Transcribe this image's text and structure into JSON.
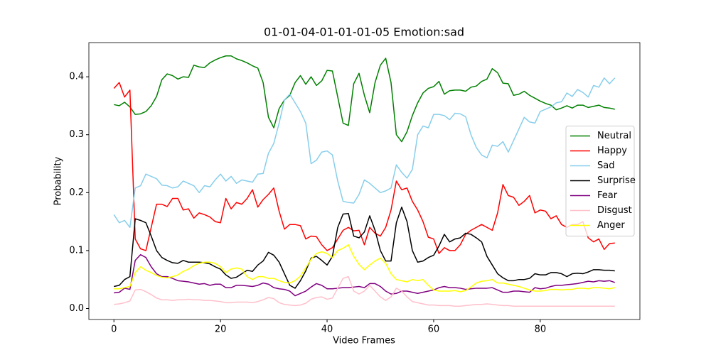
{
  "chart_data": {
    "type": "line",
    "title": "01-01-04-01-01-01-05 Emotion:sad",
    "x_label": "Video Frames",
    "y_label": "Probability",
    "x": [
      0,
      1,
      2,
      3,
      4,
      5,
      6,
      7,
      8,
      9,
      10,
      11,
      12,
      13,
      14,
      15,
      16,
      17,
      18,
      19,
      20,
      21,
      22,
      23,
      24,
      25,
      26,
      27,
      28,
      29,
      30,
      31,
      32,
      33,
      34,
      35,
      36,
      37,
      38,
      39,
      40,
      41,
      42,
      43,
      44,
      45,
      46,
      47,
      48,
      49,
      50,
      51,
      52,
      53,
      54,
      55,
      56,
      57,
      58,
      59,
      60,
      61,
      62,
      63,
      64,
      65,
      66,
      67,
      68,
      69,
      70,
      71,
      72,
      73,
      74,
      75,
      76,
      77,
      78,
      79,
      80,
      81,
      82,
      83,
      84,
      85,
      86,
      87,
      88,
      89,
      90,
      91,
      92,
      93,
      94
    ],
    "xlim": [
      -4.7,
      98.7
    ],
    "ylim": [
      -0.019,
      0.459
    ],
    "xticks": [
      0,
      20,
      40,
      60,
      80
    ],
    "yticks": [
      {
        "value": 0,
        "label": "0.0"
      },
      0.1,
      0.2,
      0.3,
      0.4
    ],
    "legend_position": "center right",
    "series": [
      {
        "name": "Neutral",
        "color": "green",
        "values": [
          0.352,
          0.35,
          0.356,
          0.348,
          0.335,
          0.336,
          0.34,
          0.35,
          0.366,
          0.395,
          0.405,
          0.402,
          0.396,
          0.4,
          0.399,
          0.42,
          0.417,
          0.416,
          0.424,
          0.429,
          0.433,
          0.436,
          0.436,
          0.431,
          0.428,
          0.424,
          0.419,
          0.415,
          0.39,
          0.33,
          0.312,
          0.345,
          0.36,
          0.368,
          0.39,
          0.402,
          0.387,
          0.4,
          0.385,
          0.393,
          0.411,
          0.41,
          0.365,
          0.32,
          0.316,
          0.388,
          0.406,
          0.368,
          0.338,
          0.39,
          0.42,
          0.432,
          0.39,
          0.3,
          0.288,
          0.305,
          0.333,
          0.355,
          0.372,
          0.38,
          0.383,
          0.392,
          0.37,
          0.376,
          0.377,
          0.377,
          0.375,
          0.382,
          0.384,
          0.392,
          0.396,
          0.414,
          0.407,
          0.389,
          0.388,
          0.368,
          0.37,
          0.375,
          0.368,
          0.363,
          0.358,
          0.354,
          0.351,
          0.343,
          0.346,
          0.35,
          0.346,
          0.351,
          0.351,
          0.347,
          0.349,
          0.351,
          0.347,
          0.346,
          0.344
        ]
      },
      {
        "name": "Happy",
        "color": "red",
        "values": [
          0.38,
          0.39,
          0.365,
          0.377,
          0.12,
          0.103,
          0.1,
          0.14,
          0.18,
          0.18,
          0.176,
          0.19,
          0.19,
          0.17,
          0.172,
          0.156,
          0.165,
          0.162,
          0.158,
          0.15,
          0.148,
          0.19,
          0.172,
          0.183,
          0.18,
          0.19,
          0.205,
          0.175,
          0.188,
          0.197,
          0.208,
          0.168,
          0.137,
          0.145,
          0.145,
          0.143,
          0.12,
          0.125,
          0.124,
          0.11,
          0.1,
          0.105,
          0.12,
          0.135,
          0.14,
          0.134,
          0.135,
          0.11,
          0.14,
          0.13,
          0.125,
          0.14,
          0.17,
          0.22,
          0.205,
          0.208,
          0.185,
          0.17,
          0.15,
          0.123,
          0.12,
          0.095,
          0.105,
          0.1,
          0.1,
          0.11,
          0.128,
          0.135,
          0.14,
          0.145,
          0.14,
          0.135,
          0.165,
          0.214,
          0.195,
          0.192,
          0.178,
          0.185,
          0.195,
          0.165,
          0.17,
          0.168,
          0.155,
          0.16,
          0.145,
          0.14,
          0.145,
          0.145,
          0.15,
          0.122,
          0.115,
          0.12,
          0.102,
          0.112,
          0.113
        ]
      },
      {
        "name": "Sad",
        "color": "skyblue",
        "values": [
          0.162,
          0.148,
          0.152,
          0.14,
          0.208,
          0.212,
          0.232,
          0.228,
          0.224,
          0.213,
          0.212,
          0.208,
          0.21,
          0.22,
          0.216,
          0.212,
          0.2,
          0.212,
          0.21,
          0.222,
          0.232,
          0.22,
          0.228,
          0.216,
          0.222,
          0.22,
          0.218,
          0.232,
          0.233,
          0.268,
          0.285,
          0.32,
          0.36,
          0.37,
          0.355,
          0.34,
          0.32,
          0.25,
          0.256,
          0.27,
          0.272,
          0.265,
          0.22,
          0.185,
          0.183,
          0.182,
          0.197,
          0.222,
          0.216,
          0.208,
          0.2,
          0.203,
          0.208,
          0.248,
          0.235,
          0.225,
          0.24,
          0.3,
          0.315,
          0.312,
          0.335,
          0.335,
          0.333,
          0.326,
          0.337,
          0.336,
          0.331,
          0.3,
          0.278,
          0.265,
          0.26,
          0.282,
          0.28,
          0.288,
          0.27,
          0.29,
          0.31,
          0.33,
          0.322,
          0.32,
          0.34,
          0.344,
          0.348,
          0.355,
          0.357,
          0.372,
          0.366,
          0.378,
          0.373,
          0.365,
          0.385,
          0.382,
          0.398,
          0.388,
          0.398
        ]
      },
      {
        "name": "Surprise",
        "color": "black",
        "values": [
          0.038,
          0.04,
          0.05,
          0.055,
          0.155,
          0.152,
          0.148,
          0.125,
          0.1,
          0.088,
          0.083,
          0.079,
          0.078,
          0.083,
          0.08,
          0.08,
          0.08,
          0.079,
          0.077,
          0.072,
          0.068,
          0.058,
          0.052,
          0.054,
          0.06,
          0.066,
          0.064,
          0.075,
          0.082,
          0.097,
          0.092,
          0.08,
          0.06,
          0.04,
          0.035,
          0.048,
          0.065,
          0.087,
          0.09,
          0.083,
          0.075,
          0.09,
          0.14,
          0.163,
          0.164,
          0.125,
          0.122,
          0.132,
          0.16,
          0.135,
          0.1,
          0.082,
          0.082,
          0.148,
          0.175,
          0.15,
          0.1,
          0.08,
          0.082,
          0.088,
          0.092,
          0.108,
          0.128,
          0.115,
          0.12,
          0.122,
          0.13,
          0.128,
          0.122,
          0.115,
          0.09,
          0.075,
          0.06,
          0.053,
          0.048,
          0.048,
          0.05,
          0.05,
          0.052,
          0.06,
          0.058,
          0.058,
          0.062,
          0.062,
          0.06,
          0.055,
          0.06,
          0.061,
          0.06,
          0.063,
          0.067,
          0.067,
          0.066,
          0.066,
          0.065
        ]
      },
      {
        "name": "Fear",
        "color": "purple",
        "values": [
          0.027,
          0.028,
          0.035,
          0.033,
          0.083,
          0.093,
          0.088,
          0.072,
          0.06,
          0.055,
          0.055,
          0.052,
          0.048,
          0.047,
          0.046,
          0.044,
          0.042,
          0.043,
          0.04,
          0.042,
          0.042,
          0.036,
          0.036,
          0.04,
          0.04,
          0.039,
          0.038,
          0.04,
          0.044,
          0.042,
          0.036,
          0.034,
          0.033,
          0.03,
          0.022,
          0.026,
          0.03,
          0.037,
          0.043,
          0.04,
          0.034,
          0.034,
          0.035,
          0.036,
          0.036,
          0.037,
          0.038,
          0.036,
          0.043,
          0.043,
          0.038,
          0.03,
          0.025,
          0.026,
          0.03,
          0.03,
          0.028,
          0.026,
          0.028,
          0.03,
          0.032,
          0.036,
          0.038,
          0.036,
          0.036,
          0.035,
          0.033,
          0.034,
          0.035,
          0.035,
          0.035,
          0.036,
          0.032,
          0.028,
          0.028,
          0.03,
          0.03,
          0.029,
          0.028,
          0.036,
          0.034,
          0.035,
          0.038,
          0.04,
          0.04,
          0.041,
          0.042,
          0.043,
          0.045,
          0.047,
          0.046,
          0.048,
          0.047,
          0.048,
          0.045
        ]
      },
      {
        "name": "Disgust",
        "color": "pink",
        "values": [
          0.007,
          0.008,
          0.01,
          0.013,
          0.032,
          0.033,
          0.029,
          0.024,
          0.018,
          0.015,
          0.015,
          0.014,
          0.015,
          0.015,
          0.016,
          0.015,
          0.015,
          0.014,
          0.014,
          0.013,
          0.012,
          0.01,
          0.01,
          0.011,
          0.011,
          0.011,
          0.01,
          0.012,
          0.015,
          0.019,
          0.017,
          0.01,
          0.007,
          0.006,
          0.005,
          0.006,
          0.009,
          0.016,
          0.019,
          0.02,
          0.016,
          0.018,
          0.035,
          0.052,
          0.055,
          0.03,
          0.025,
          0.03,
          0.04,
          0.03,
          0.02,
          0.014,
          0.02,
          0.035,
          0.03,
          0.02,
          0.012,
          0.01,
          0.008,
          0.006,
          0.006,
          0.005,
          0.005,
          0.005,
          0.004,
          0.004,
          0.005,
          0.006,
          0.007,
          0.007,
          0.008,
          0.007,
          0.006,
          0.005,
          0.005,
          0.004,
          0.004,
          0.004,
          0.004,
          0.004,
          0.004,
          0.004,
          0.004,
          0.004,
          0.004,
          0.004,
          0.004,
          0.004,
          0.004,
          0.004,
          0.004,
          0.004,
          0.004,
          0.004,
          0.004
        ]
      },
      {
        "name": "Anger",
        "color": "yellow",
        "values": [
          0.034,
          0.034,
          0.036,
          0.038,
          0.062,
          0.072,
          0.066,
          0.062,
          0.057,
          0.054,
          0.053,
          0.055,
          0.058,
          0.064,
          0.068,
          0.074,
          0.078,
          0.08,
          0.08,
          0.078,
          0.072,
          0.062,
          0.068,
          0.07,
          0.068,
          0.055,
          0.05,
          0.055,
          0.055,
          0.052,
          0.052,
          0.048,
          0.045,
          0.044,
          0.048,
          0.056,
          0.07,
          0.085,
          0.095,
          0.098,
          0.095,
          0.088,
          0.1,
          0.104,
          0.11,
          0.09,
          0.076,
          0.067,
          0.075,
          0.082,
          0.087,
          0.078,
          0.06,
          0.05,
          0.048,
          0.046,
          0.05,
          0.048,
          0.05,
          0.04,
          0.032,
          0.03,
          0.03,
          0.03,
          0.031,
          0.029,
          0.031,
          0.037,
          0.044,
          0.047,
          0.048,
          0.05,
          0.044,
          0.044,
          0.042,
          0.04,
          0.038,
          0.035,
          0.032,
          0.03,
          0.03,
          0.031,
          0.033,
          0.033,
          0.032,
          0.033,
          0.033,
          0.035,
          0.035,
          0.034,
          0.036,
          0.036,
          0.035,
          0.034,
          0.036
        ]
      }
    ]
  }
}
